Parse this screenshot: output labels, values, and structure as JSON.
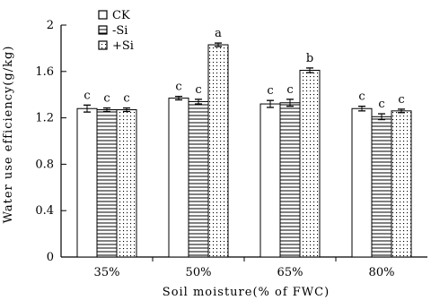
{
  "chart_data": {
    "type": "bar",
    "title": "",
    "xlabel": "Soil moisture(% of FWC)",
    "ylabel": "Water use efficiency(g/kg)",
    "ylim": [
      0,
      2
    ],
    "yticks": [
      0,
      0.4,
      0.8,
      1.2,
      1.6,
      2
    ],
    "ytick_labels": [
      "0",
      "0.4",
      "0.8",
      "1.2",
      "1.6",
      "2"
    ],
    "categories": [
      "35%",
      "50%",
      "65%",
      "80%"
    ],
    "grid": false,
    "legend_position": "top-left",
    "series": [
      {
        "name": "CK",
        "pattern": "blank",
        "values": [
          1.28,
          1.37,
          1.32,
          1.28
        ],
        "errors": [
          0.03,
          0.015,
          0.03,
          0.02
        ],
        "labels": [
          "c",
          "c",
          "c",
          "c"
        ]
      },
      {
        "name": "-Si",
        "pattern": "horizontal-lines",
        "values": [
          1.27,
          1.34,
          1.33,
          1.21
        ],
        "errors": [
          0.015,
          0.02,
          0.03,
          0.025
        ],
        "labels": [
          "c",
          "c",
          "c",
          "c"
        ]
      },
      {
        "name": "+Si",
        "pattern": "dots",
        "values": [
          1.27,
          1.83,
          1.61,
          1.26
        ],
        "errors": [
          0.015,
          0.015,
          0.02,
          0.015
        ],
        "labels": [
          "c",
          "a",
          "b",
          "c"
        ]
      }
    ]
  }
}
